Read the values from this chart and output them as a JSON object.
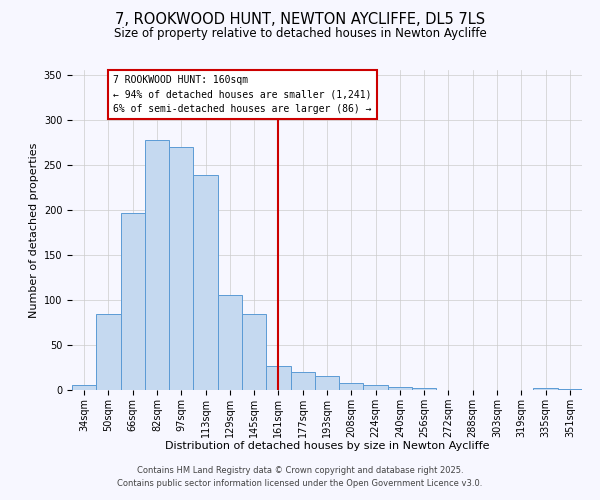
{
  "title": "7, ROOKWOOD HUNT, NEWTON AYCLIFFE, DL5 7LS",
  "subtitle": "Size of property relative to detached houses in Newton Aycliffe",
  "xlabel": "Distribution of detached houses by size in Newton Aycliffe",
  "ylabel": "Number of detached properties",
  "categories": [
    "34sqm",
    "50sqm",
    "66sqm",
    "82sqm",
    "97sqm",
    "113sqm",
    "129sqm",
    "145sqm",
    "161sqm",
    "177sqm",
    "193sqm",
    "208sqm",
    "224sqm",
    "240sqm",
    "256sqm",
    "272sqm",
    "288sqm",
    "303sqm",
    "319sqm",
    "335sqm",
    "351sqm"
  ],
  "values": [
    6,
    84,
    196,
    277,
    270,
    238,
    105,
    84,
    27,
    20,
    15,
    8,
    6,
    3,
    2,
    0,
    0,
    0,
    0,
    2,
    1
  ],
  "bar_color": "#c5d9f0",
  "bar_edge_color": "#5b9bd5",
  "vline_index": 8,
  "vline_color": "#cc0000",
  "annotation_title": "7 ROOKWOOD HUNT: 160sqm",
  "annotation_line1": "← 94% of detached houses are smaller (1,241)",
  "annotation_line2": "6% of semi-detached houses are larger (86) →",
  "annotation_box_edge_color": "#cc0000",
  "ylim": [
    0,
    355
  ],
  "yticks": [
    0,
    50,
    100,
    150,
    200,
    250,
    300,
    350
  ],
  "bg_color": "#f7f7ff",
  "title_fontsize": 10.5,
  "subtitle_fontsize": 8.5,
  "axis_label_fontsize": 8,
  "tick_fontsize": 7,
  "annotation_fontsize": 7,
  "footer_fontsize": 6,
  "footer1": "Contains HM Land Registry data © Crown copyright and database right 2025.",
  "footer2": "Contains public sector information licensed under the Open Government Licence v3.0."
}
